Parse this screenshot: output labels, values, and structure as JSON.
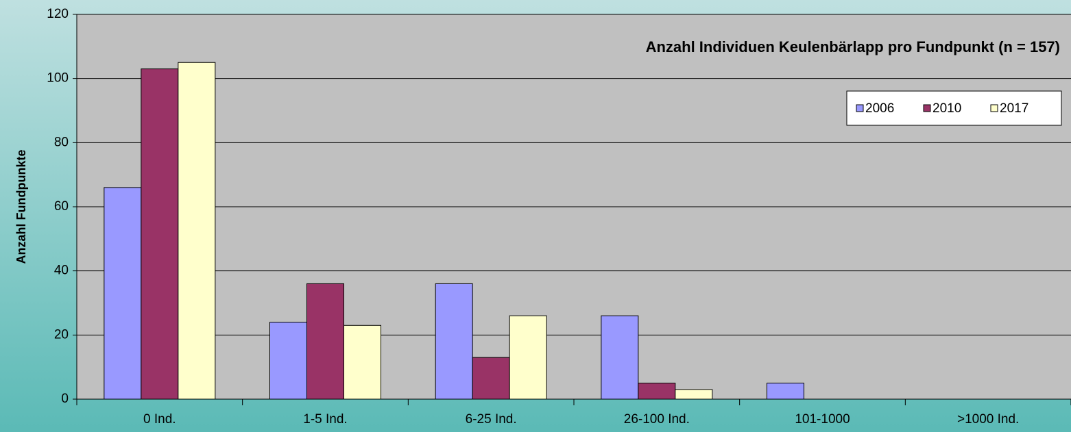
{
  "chart_data": {
    "type": "bar",
    "title": "Anzahl Individuen Keulenbärlapp pro Fundpunkt  (n = 157)",
    "y_label": "Anzahl Fundpunkte",
    "categories": [
      "0 Ind.",
      "1-5 Ind.",
      "6-25 Ind.",
      "26-100 Ind.",
      "101-1000",
      ">1000 Ind."
    ],
    "series": [
      {
        "name": "2006",
        "color": "#9999ff",
        "values": [
          66,
          24,
          36,
          26,
          5,
          0
        ]
      },
      {
        "name": "2010",
        "color": "#993366",
        "values": [
          103,
          36,
          13,
          5,
          0,
          0
        ]
      },
      {
        "name": "2017",
        "color": "#ffffcc",
        "values": [
          105,
          23,
          26,
          3,
          0,
          0
        ]
      }
    ],
    "ylim": [
      0,
      120
    ],
    "yticks": [
      0,
      20,
      40,
      60,
      80,
      100,
      120
    ],
    "grid": true,
    "legend": "top-right"
  }
}
